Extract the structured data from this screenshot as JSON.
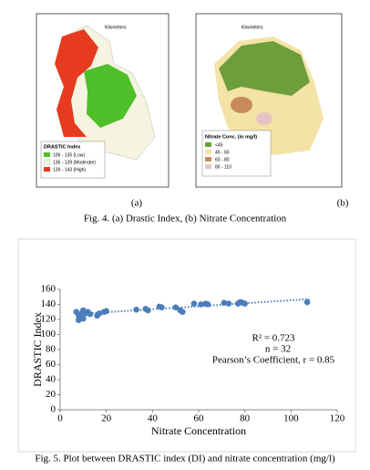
{
  "figure4": {
    "map_a": {
      "legend_title": "DRASTIC Index",
      "legend": [
        "106 - 135 (Low)",
        "136 - 139 (Moderate)",
        "139 - 143 (High)"
      ],
      "scale_unit": "Kilometers"
    },
    "map_b": {
      "legend_title": "Nitrate Conc. (in mg/l)",
      "legend": [
        "<45",
        "45 - 60",
        "60 - 80",
        "80 - 110"
      ],
      "scale_unit": "Kilometers"
    },
    "label_a": "(a)",
    "label_b": "(b)",
    "caption": "Fig. 4. (a) Drastic Index, (b) Nitrate Concentration"
  },
  "chart_data": {
    "type": "scatter",
    "x_label": "Nitrate Concentration",
    "y_label": "DRASTIC Index",
    "x": [
      7,
      8,
      8,
      9,
      10,
      10,
      11,
      12,
      13,
      16,
      17,
      19,
      20,
      33,
      37,
      38,
      43,
      44,
      50,
      52,
      53,
      58,
      61,
      63,
      64,
      71,
      73,
      77,
      78,
      79,
      80,
      107
    ],
    "values": [
      130,
      125,
      119,
      127,
      121,
      132,
      128,
      130,
      127,
      125,
      128,
      130,
      131,
      133,
      134,
      132,
      137,
      136,
      136,
      132,
      130,
      141,
      140,
      141,
      140,
      142,
      141,
      141,
      143,
      142,
      141,
      143
    ],
    "color": "#4a7ebb",
    "trendline": {
      "x": [
        7,
        108
      ],
      "y": [
        127,
        147
      ]
    },
    "annotations": [
      "R² = 0.723",
      "n = 32",
      "Pearson’s Coefficient, r = 0.85"
    ],
    "xlim": [
      0,
      120
    ],
    "xticks": [
      0,
      20,
      40,
      60,
      80,
      100,
      120
    ],
    "ylim": [
      0,
      160
    ],
    "yticks": [
      0,
      20,
      40,
      60,
      80,
      100,
      120,
      140,
      160
    ],
    "caption": "Fig. 5. Plot between DRASTIC index (DI) and nitrate concentration (mg/l)"
  }
}
